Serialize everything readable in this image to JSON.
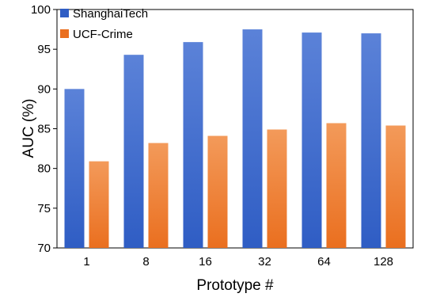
{
  "chart_data": {
    "type": "bar",
    "title": "",
    "xlabel": "Prototype #",
    "ylabel": "AUC (%)",
    "ylim": [
      70,
      100
    ],
    "yticks": [
      70,
      75,
      80,
      85,
      90,
      95,
      100
    ],
    "grid": false,
    "legend_position": "top-left",
    "categories": [
      "1",
      "8",
      "16",
      "32",
      "64",
      "128"
    ],
    "series": [
      {
        "name": "ShanghaiTech",
        "values": [
          90.0,
          94.3,
          95.9,
          97.5,
          97.1,
          97.0
        ],
        "color_top": "#5b82d8",
        "color_bottom": "#2f5dc4"
      },
      {
        "name": "UCF-Crime",
        "values": [
          80.9,
          83.2,
          84.1,
          84.9,
          85.7,
          85.4
        ],
        "color_top": "#f39a5a",
        "color_bottom": "#ea6f1f"
      }
    ]
  }
}
